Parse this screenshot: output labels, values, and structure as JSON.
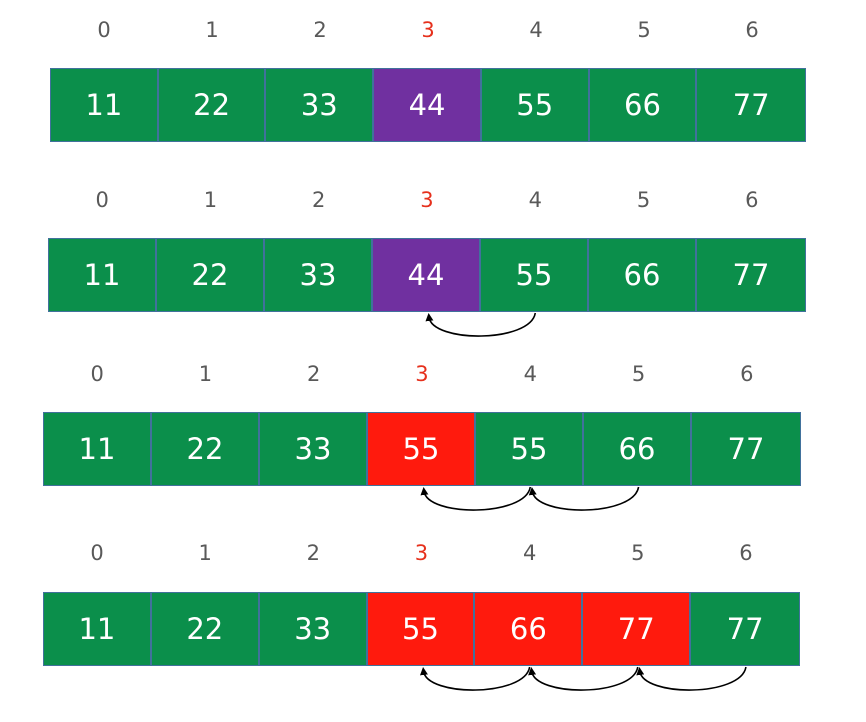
{
  "colors": {
    "normal": "#0b8f4b",
    "key": "#7030a0",
    "shifted": "#ff1a0d",
    "highlight_index": "#e6301c",
    "cell_border": "#41719c",
    "arrow": "#000000"
  },
  "rows": [
    {
      "indices": [
        "0",
        "1",
        "2",
        "3",
        "4",
        "5",
        "6"
      ],
      "highlight_index": 3,
      "values": [
        "11",
        "22",
        "33",
        "44",
        "55",
        "66",
        "77"
      ],
      "cell_states": [
        "normal",
        "normal",
        "normal",
        "key",
        "normal",
        "normal",
        "normal"
      ],
      "arrows": []
    },
    {
      "indices": [
        "0",
        "1",
        "2",
        "3",
        "4",
        "5",
        "6"
      ],
      "highlight_index": 3,
      "values": [
        "11",
        "22",
        "33",
        "44",
        "55",
        "66",
        "77"
      ],
      "cell_states": [
        "normal",
        "normal",
        "normal",
        "key",
        "normal",
        "normal",
        "normal"
      ],
      "arrows": [
        {
          "from": 4,
          "to": 3
        }
      ]
    },
    {
      "indices": [
        "0",
        "1",
        "2",
        "3",
        "4",
        "5",
        "6"
      ],
      "highlight_index": 3,
      "values": [
        "11",
        "22",
        "33",
        "55",
        "55",
        "66",
        "77"
      ],
      "cell_states": [
        "normal",
        "normal",
        "normal",
        "shifted",
        "normal",
        "normal",
        "normal"
      ],
      "arrows": [
        {
          "from": 4,
          "to": 3
        },
        {
          "from": 5,
          "to": 4
        }
      ]
    },
    {
      "indices": [
        "0",
        "1",
        "2",
        "3",
        "4",
        "5",
        "6"
      ],
      "highlight_index": 3,
      "values": [
        "11",
        "22",
        "33",
        "55",
        "66",
        "77",
        "77"
      ],
      "cell_states": [
        "normal",
        "normal",
        "normal",
        "shifted",
        "shifted",
        "shifted",
        "normal"
      ],
      "arrows": [
        {
          "from": 4,
          "to": 3
        },
        {
          "from": 5,
          "to": 4
        },
        {
          "from": 6,
          "to": 5
        }
      ]
    }
  ]
}
